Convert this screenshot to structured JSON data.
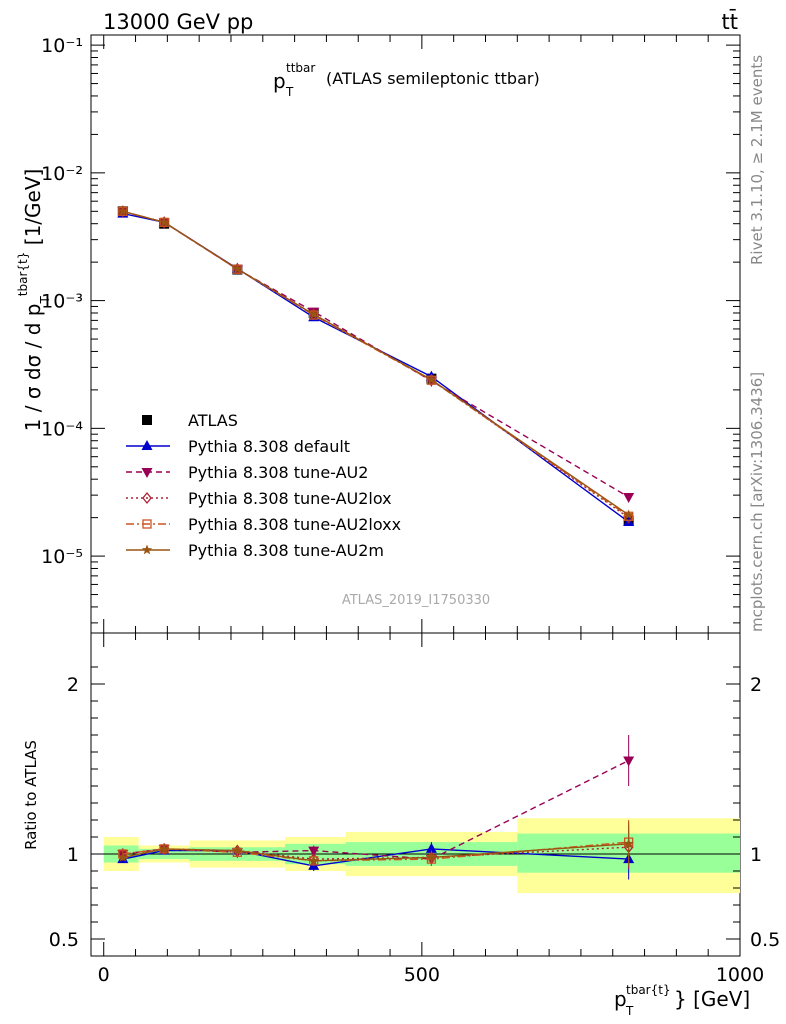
{
  "header": {
    "energy": "13000 GeV pp",
    "process": "tt̄"
  },
  "side_text": {
    "rivet": "Rivet 3.1.10, ≥ 2.1M events",
    "mcplots": "mcplots.cern.ch [arXiv:1306.3436]"
  },
  "watermark": "ATLAS_2019_I1750330",
  "plot_title": {
    "main": "p",
    "sub": "T",
    "sup": "ttbar",
    "rest": "(ATLAS semileptonic ttbar)"
  },
  "colors": {
    "data": "#000000",
    "default": "#0000cc",
    "AU2": "#990055",
    "AU2lox": "#aa2233",
    "AU2loxx": "#cc5522",
    "AU2m": "#995511",
    "band_inner": "#99ff99",
    "band_outer": "#ffff99"
  },
  "chart_data": [
    {
      "type": "line",
      "panel": "main",
      "yscale": "log",
      "ylim": [
        2.5e-06,
        0.12
      ],
      "xlim": [
        -20,
        1000
      ],
      "yticks": [
        "10⁻¹",
        "10⁻²",
        "10⁻³",
        "10⁻⁴",
        "10⁻⁵"
      ],
      "ylabel": "1 / σ dσ / d p_T^{tbar{t}} [1/GeV]",
      "legend_position": "bottom-left",
      "x": [
        30,
        95,
        210,
        330,
        515,
        825
      ],
      "series": [
        {
          "name": "ATLAS",
          "values": [
            0.005,
            0.004,
            0.00175,
            0.0008,
            0.000245,
            1.9e-05
          ],
          "marker": "square",
          "style": "none"
        },
        {
          "name": "Pythia 8.308 default",
          "values": [
            0.0048,
            0.0041,
            0.00178,
            0.00074,
            0.000254,
            1.85e-05
          ],
          "marker": "triangle-up",
          "style": "solid"
        },
        {
          "name": "Pythia 8.308 tune-AU2",
          "values": [
            0.005,
            0.0041,
            0.00176,
            0.00082,
            0.000235,
            2.9e-05
          ],
          "marker": "triangle-down",
          "style": "dashed"
        },
        {
          "name": "Pythia 8.308 tune-AU2lox",
          "values": [
            0.005,
            0.0041,
            0.00177,
            0.00078,
            0.00024,
            2e-05
          ],
          "marker": "diamond-open",
          "style": "dotted"
        },
        {
          "name": "Pythia 8.308 tune-AU2loxx",
          "values": [
            0.005,
            0.0041,
            0.00176,
            0.00077,
            0.000238,
            2.05e-05
          ],
          "marker": "square-open",
          "style": "dashdot"
        },
        {
          "name": "Pythia 8.308 tune-AU2m",
          "values": [
            0.005,
            0.0041,
            0.00177,
            0.00078,
            0.00024,
            2.1e-05
          ],
          "marker": "star",
          "style": "solid"
        }
      ]
    },
    {
      "type": "line",
      "panel": "ratio",
      "ylabel": "Ratio to ATLAS",
      "ylim": [
        0.4,
        2.3
      ],
      "yticks": [
        "2",
        "1",
        "0.5"
      ],
      "xlim": [
        -20,
        1000
      ],
      "xticks": [
        "0",
        "500",
        "1000"
      ],
      "xlabel": "p_T^{tbar{t}} [GeV]",
      "x": [
        30,
        95,
        210,
        330,
        515,
        825
      ],
      "bins": [
        [
          0,
          55
        ],
        [
          55,
          135
        ],
        [
          135,
          285
        ],
        [
          285,
          380
        ],
        [
          380,
          650
        ],
        [
          650,
          1000
        ]
      ],
      "band_inner": [
        [
          0.95,
          1.05
        ],
        [
          0.97,
          1.03
        ],
        [
          0.96,
          1.04
        ],
        [
          0.94,
          1.06
        ],
        [
          0.93,
          1.07
        ],
        [
          0.89,
          1.12
        ]
      ],
      "band_outer": [
        [
          0.9,
          1.1
        ],
        [
          0.95,
          1.05
        ],
        [
          0.92,
          1.08
        ],
        [
          0.9,
          1.1
        ],
        [
          0.87,
          1.13
        ],
        [
          0.77,
          1.21
        ]
      ],
      "series": [
        {
          "name": "Pythia 8.308 default",
          "values": [
            0.97,
            1.02,
            1.02,
            0.93,
            1.03,
            0.97
          ],
          "err": [
            0.02,
            0.02,
            0.02,
            0.03,
            0.04,
            0.12
          ]
        },
        {
          "name": "Pythia 8.308 tune-AU2",
          "values": [
            1.0,
            1.03,
            1.01,
            1.02,
            0.97,
            1.55
          ],
          "err": [
            0.02,
            0.02,
            0.02,
            0.03,
            0.04,
            0.15
          ]
        },
        {
          "name": "Pythia 8.308 tune-AU2lox",
          "values": [
            1.0,
            1.03,
            1.02,
            0.97,
            0.98,
            1.04
          ],
          "err": [
            0.02,
            0.02,
            0.02,
            0.03,
            0.04,
            0.13
          ]
        },
        {
          "name": "Pythia 8.308 tune-AU2loxx",
          "values": [
            1.0,
            1.03,
            1.01,
            0.96,
            0.97,
            1.07
          ],
          "err": [
            0.02,
            0.02,
            0.02,
            0.03,
            0.04,
            0.13
          ]
        },
        {
          "name": "Pythia 8.308 tune-AU2m",
          "values": [
            0.98,
            1.03,
            1.02,
            0.96,
            0.98,
            1.06
          ],
          "err": [
            0.02,
            0.02,
            0.02,
            0.03,
            0.04,
            0.13
          ]
        }
      ]
    }
  ]
}
